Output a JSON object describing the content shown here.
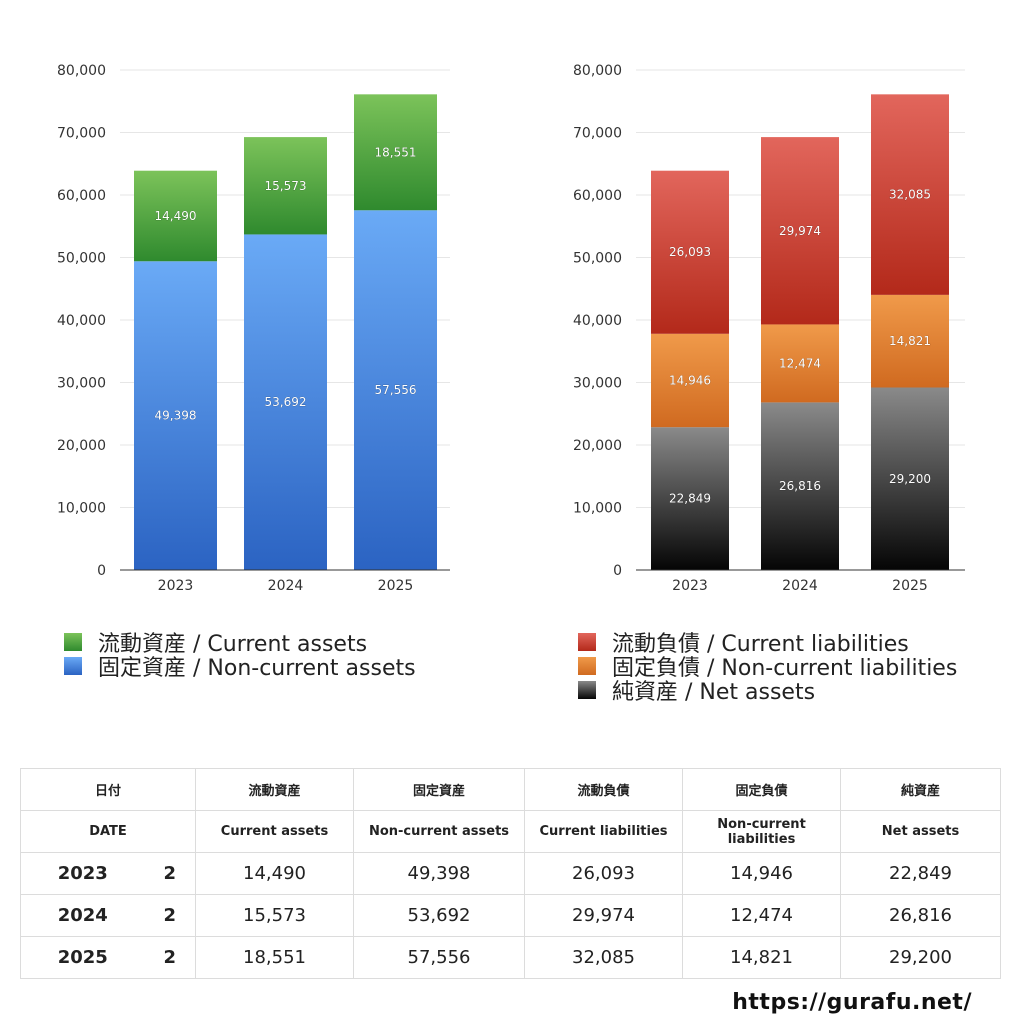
{
  "chart_data": [
    {
      "type": "bar",
      "stacked": true,
      "title": "",
      "categories": [
        "2023",
        "2024",
        "2025"
      ],
      "ylim": [
        0,
        80000
      ],
      "yticks": [
        "0",
        "10,000",
        "20,000",
        "30,000",
        "40,000",
        "50,000",
        "60,000",
        "70,000",
        "80,000"
      ],
      "ytick_values": [
        0,
        10000,
        20000,
        30000,
        40000,
        50000,
        60000,
        70000,
        80000
      ],
      "grid": true,
      "series": [
        {
          "name": "固定資産 / Non-current assets",
          "values": [
            49398,
            53692,
            57556
          ],
          "labels": [
            "49,398",
            "53,692",
            "57,556"
          ],
          "color_top": "#6aaaf6",
          "color_bottom": "#2b63c2"
        },
        {
          "name": "流動資産 / Current assets",
          "values": [
            14490,
            15573,
            18551
          ],
          "labels": [
            "14,490",
            "15,573",
            "18,551"
          ],
          "color_top": "#7cc35a",
          "color_bottom": "#2f8a2e"
        }
      ],
      "legend": [
        "流動資産 / Current assets",
        "固定資産 / Non-current assets"
      ],
      "legend_position": "bottom"
    },
    {
      "type": "bar",
      "stacked": true,
      "title": "",
      "categories": [
        "2023",
        "2024",
        "2025"
      ],
      "ylim": [
        0,
        80000
      ],
      "yticks": [
        "0",
        "10,000",
        "20,000",
        "30,000",
        "40,000",
        "50,000",
        "60,000",
        "70,000",
        "80,000"
      ],
      "ytick_values": [
        0,
        10000,
        20000,
        30000,
        40000,
        50000,
        60000,
        70000,
        80000
      ],
      "grid": true,
      "series": [
        {
          "name": "純資産 / Net assets",
          "values": [
            22849,
            26816,
            29200
          ],
          "labels": [
            "22,849",
            "26,816",
            "29,200"
          ],
          "color_top": "#8a8a8a",
          "color_bottom": "#050505"
        },
        {
          "name": "固定負債 / Non-current liabilities",
          "values": [
            14946,
            12474,
            14821
          ],
          "labels": [
            "14,946",
            "12,474",
            "14,821"
          ],
          "color_top": "#f09a4a",
          "color_bottom": "#d06a20"
        },
        {
          "name": "流動負債 / Current liabilities",
          "values": [
            26093,
            29974,
            32085
          ],
          "labels": [
            "26,093",
            "29,974",
            "32,085"
          ],
          "color_top": "#e2665c",
          "color_bottom": "#b3291a"
        }
      ],
      "legend": [
        "流動負債 / Current liabilities",
        "固定負債 / Non-current liabilities",
        "純資産 / Net assets"
      ],
      "legend_position": "bottom"
    }
  ],
  "legend_left": {
    "current_assets": "流動資産 / Current assets",
    "non_current_assets": "固定資産 / Non-current assets"
  },
  "legend_right": {
    "current_liabilities": "流動負債 / Current liabilities",
    "non_current_liabilities": "固定負債 / Non-current liabilities",
    "net_assets": "純資産 / Net assets"
  },
  "table": {
    "header_jp": {
      "date": "日付",
      "current_assets": "流動資産",
      "non_current_assets": "固定資産",
      "current_liabilities": "流動負債",
      "non_current_liabilities": "固定負債",
      "net_assets": "純資産"
    },
    "header_en": {
      "date": "DATE",
      "current_assets": "Current assets",
      "non_current_assets": "Non-current assets",
      "current_liabilities": "Current liabilities",
      "non_current_liabilities": "Non-current liabilities",
      "net_assets": "Net assets"
    },
    "rows": [
      {
        "year": "2023",
        "count": "2",
        "current_assets": "14,490",
        "non_current_assets": "49,398",
        "current_liabilities": "26,093",
        "non_current_liabilities": "14,946",
        "net_assets": "22,849"
      },
      {
        "year": "2024",
        "count": "2",
        "current_assets": "15,573",
        "non_current_assets": "53,692",
        "current_liabilities": "29,974",
        "non_current_liabilities": "12,474",
        "net_assets": "26,816"
      },
      {
        "year": "2025",
        "count": "2",
        "current_assets": "18,551",
        "non_current_assets": "57,556",
        "current_liabilities": "32,085",
        "non_current_liabilities": "14,821",
        "net_assets": "29,200"
      }
    ]
  },
  "footer": {
    "url": "https://gurafu.net/"
  }
}
